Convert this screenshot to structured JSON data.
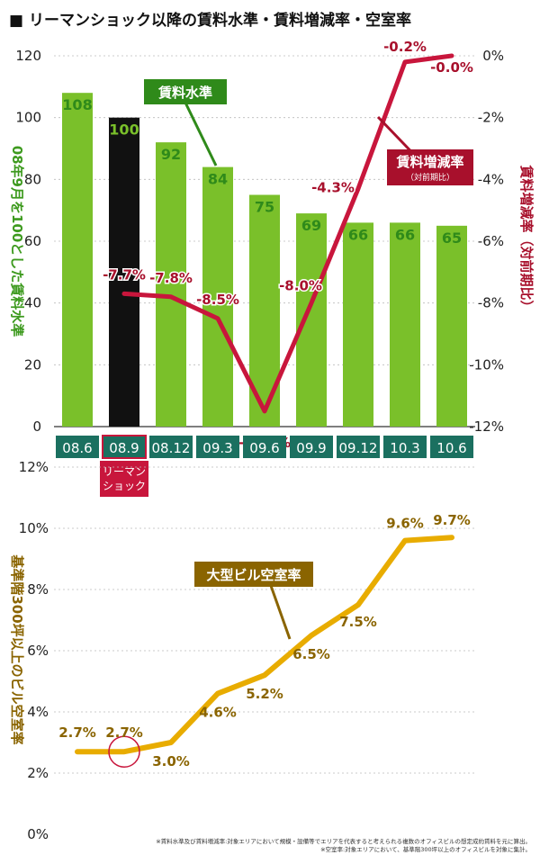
{
  "title": "■ リーマンショック以降の賃料水準・賃料増減率・空室率",
  "chart_data": [
    {
      "type": "bar",
      "categories": [
        "08.6",
        "08.9",
        "08.12",
        "09.3",
        "09.6",
        "09.9",
        "09.12",
        "10.3",
        "10.6"
      ],
      "series": [
        {
          "name": "賃料水準",
          "values": [
            108,
            100,
            92,
            84,
            75,
            69,
            66,
            66,
            65
          ],
          "color": "#7ac02a",
          "highlight_color": "#111111",
          "highlight_index": 1
        }
      ],
      "ylim": [
        0,
        120
      ],
      "yticks": [
        "0",
        "20",
        "40",
        "60",
        "80",
        "100",
        "120"
      ],
      "ylabel": "08年9月を100とした賃料水準",
      "callout": "賃料水準"
    },
    {
      "type": "line",
      "categories": [
        "08.9",
        "08.12",
        "09.3",
        "09.6",
        "09.9",
        "09.12",
        "10.3",
        "10.6"
      ],
      "series": [
        {
          "name": "賃料増減率",
          "values": [
            -7.7,
            -7.8,
            -8.5,
            -11.5,
            -8.0,
            -4.3,
            -0.2,
            -0.0
          ],
          "labels": [
            "-7.7%",
            "-7.8%",
            "-8.5%",
            "-11.5%",
            "-8.0%",
            "-4.3%",
            "-0.2%",
            "-0.0%"
          ],
          "color": "#c8163c"
        }
      ],
      "ylim": [
        -12,
        0
      ],
      "yticks": [
        "-12%",
        "-10%",
        "-8%",
        "-6%",
        "-4%",
        "-2%",
        "0%"
      ],
      "ylabel": "賃料増減率（対前期比）",
      "callout": "賃料増減率",
      "callout_sub": "（対前期比）"
    },
    {
      "type": "line",
      "categories": [
        "08.6",
        "08.9",
        "08.12",
        "09.3",
        "09.6",
        "09.9",
        "09.12",
        "10.3",
        "10.6"
      ],
      "series": [
        {
          "name": "大型ビル空室率",
          "values": [
            2.7,
            2.7,
            3.0,
            4.6,
            5.2,
            6.5,
            7.5,
            9.6,
            9.7
          ],
          "labels": [
            "2.7%",
            "2.7%",
            "3.0%",
            "4.6%",
            "5.2%",
            "6.5%",
            "7.5%",
            "9.6%",
            "9.7%"
          ],
          "color": "#e8ac00"
        }
      ],
      "ylim": [
        0,
        12
      ],
      "yticks": [
        "0%",
        "2%",
        "4%",
        "6%",
        "8%",
        "10%",
        "12%"
      ],
      "ylabel": "基準階300坪以上のビル空室率",
      "callout": "大型ビル空室率"
    }
  ],
  "lehman_label": [
    "リーマン",
    "ショック"
  ],
  "notes": [
    "※賃料水準及び賃料増減率:対象エリアにおいて規模・設備等でエリアを代表すると考えられる複数のオフィスビルの想定成約賃料を元に算出。",
    "※空室率:対象エリアにおいて、基準階300坪以上のオフィスビルを対象に集計。"
  ],
  "colors": {
    "green": "#7ac02a",
    "green_dark": "#2f8a1a",
    "green_label": "#3d9a1e",
    "red": "#c8163c",
    "red_dark": "#a8102c",
    "yellow": "#e8ac00",
    "yellow_dark": "#8a6400",
    "teal": "#1b7060",
    "black": "#111111"
  }
}
